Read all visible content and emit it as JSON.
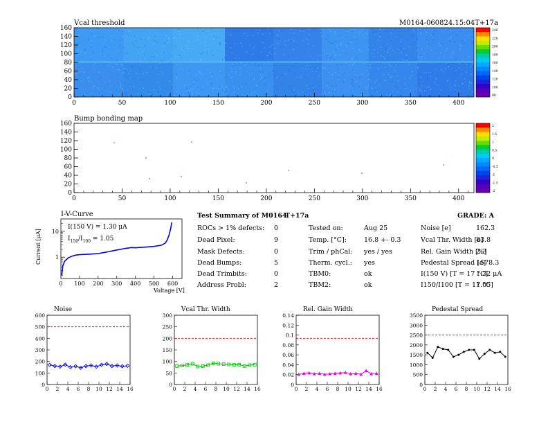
{
  "header": {
    "plot1_title": "Vcal threshold",
    "module_id": "M0164-060824.15:04T+17a",
    "plot2_title": "Bump bonding map"
  },
  "maps": {
    "x_ticks": [
      "0",
      "50",
      "100",
      "150",
      "200",
      "250",
      "300",
      "350",
      "400"
    ],
    "y_ticks": [
      "0",
      "20",
      "40",
      "60",
      "80",
      "100",
      "120",
      "140",
      "160"
    ],
    "vcal_palette_labels": [
      "240",
      "220",
      "200",
      "180",
      "160",
      "140",
      "120",
      "100",
      "80"
    ],
    "bump_palette_labels": [
      "2",
      "1.5",
      "1",
      "0.5",
      "0",
      "-0.5",
      "-1",
      "-1.5",
      "-2"
    ]
  },
  "iv": {
    "title": "I-V-Curve",
    "ylabel": "Current [μA]",
    "xlabel": "Voltage [V]",
    "annot1": "I(150 V) = 1.30 μA",
    "annot2_main": "I",
    "annot2_sub1": "150",
    "annot2_mid": "/I",
    "annot2_sub2": "100",
    "annot2_tail": " = 1.05",
    "x_ticks": [
      "0",
      "100",
      "200",
      "300",
      "400",
      "500",
      "600"
    ],
    "y_ticks": [
      "1",
      "10"
    ]
  },
  "summary": {
    "title": "Test Summary of M0164",
    "test": "T+17a",
    "grade_label": "GRADE:  A",
    "col1": [
      {
        "label": "ROCs > 1% defects:",
        "value": "0"
      },
      {
        "label": "Dead Pixel:",
        "value": "9"
      },
      {
        "label": "Mask Defects:",
        "value": "0"
      },
      {
        "label": "Dead Bumps:",
        "value": "5"
      },
      {
        "label": "Dead Trimbits:",
        "value": "0"
      },
      {
        "label": "Address Probl:",
        "value": "2"
      }
    ],
    "col2": [
      {
        "label": "Tested on:",
        "value": "Aug 25"
      },
      {
        "label": "Temp. [°C]:",
        "value": "16.8 +- 0.3"
      },
      {
        "label": "Trim / phCal:",
        "value": "yes / yes"
      },
      {
        "label": "Therm. cycl.:",
        "value": "yes"
      },
      {
        "label": "TBM0:",
        "value": "ok"
      },
      {
        "label": "TBM2:",
        "value": "ok"
      }
    ],
    "col3": [
      {
        "label": "Noise [e]",
        "value": "162.3"
      },
      {
        "label": "Vcal Thr. Width [e]",
        "value": "83.8"
      },
      {
        "label": "Rel. Gain Width [%]",
        "value": "2.3"
      },
      {
        "label": "Pedestal Spread [e]",
        "value": "1578.3"
      },
      {
        "label": "I(150 V) [T = 17 °C]",
        "value": "1.32 μA"
      },
      {
        "label": "I150/I100  [T = 17 °C]",
        "value": "1.05"
      }
    ]
  },
  "chart_data": [
    {
      "type": "line",
      "title": "I-V-Curve",
      "xlabel": "Voltage [V]",
      "ylabel": "Current [μA]",
      "log_y": true,
      "xlim": [
        0,
        650
      ],
      "ylim": [
        0.15,
        30
      ],
      "series": [
        {
          "color": "#0000ee",
          "x": [
            5,
            10,
            20,
            40,
            60,
            80,
            100,
            150,
            200,
            250,
            300,
            350,
            380,
            400,
            450,
            500,
            540,
            560,
            570,
            580,
            590,
            595
          ],
          "y": [
            0.2,
            0.45,
            0.7,
            0.95,
            1.1,
            1.2,
            1.25,
            1.3,
            1.38,
            1.6,
            1.9,
            2.2,
            2.35,
            2.3,
            2.45,
            2.6,
            2.9,
            3.5,
            4.5,
            7,
            13,
            22
          ]
        }
      ]
    },
    {
      "type": "line",
      "title": "Noise",
      "xlim": [
        0,
        16
      ],
      "ylim": [
        0,
        600
      ],
      "y_ticks": [
        "0",
        "100",
        "200",
        "300",
        "400",
        "500",
        "600"
      ],
      "x": [
        0,
        1,
        2,
        3,
        4,
        5,
        6,
        7,
        8,
        9,
        10,
        11,
        12,
        13,
        14,
        15
      ],
      "values": [
        170,
        160,
        155,
        172,
        150,
        158,
        145,
        160,
        165,
        155,
        170,
        178,
        160,
        165,
        158,
        162
      ],
      "limit": 500,
      "color": "#0000ee"
    },
    {
      "type": "line",
      "title": "Vcal Thr. Width",
      "xlim": [
        0,
        16
      ],
      "ylim": [
        0,
        300
      ],
      "y_ticks": [
        "0",
        "50",
        "100",
        "150",
        "200",
        "250",
        "300"
      ],
      "x": [
        0,
        1,
        2,
        3,
        4,
        5,
        6,
        7,
        8,
        9,
        10,
        11,
        12,
        13,
        14,
        15
      ],
      "values": [
        80,
        82,
        85,
        90,
        78,
        80,
        84,
        92,
        90,
        88,
        87,
        85,
        86,
        80,
        84,
        86
      ],
      "limit": 200,
      "color": "#00bb00"
    },
    {
      "type": "line",
      "title": "Rel. Gain Width",
      "xlim": [
        0,
        16
      ],
      "ylim": [
        0,
        0.15
      ],
      "y_ticks": [
        "0",
        "0.02",
        "0.04",
        "0.06",
        "0.08",
        "0.1",
        "0.12",
        "0.14"
      ],
      "x": [
        0,
        1,
        2,
        3,
        4,
        5,
        6,
        7,
        8,
        9,
        10,
        11,
        12,
        13,
        14,
        15
      ],
      "values": [
        0.022,
        0.024,
        0.025,
        0.023,
        0.024,
        0.022,
        0.023,
        0.024,
        0.025,
        0.026,
        0.023,
        0.024,
        0.022,
        0.03,
        0.023,
        0.024
      ],
      "limit": 0.1,
      "color": "#ee00ee"
    },
    {
      "type": "line",
      "title": "Pedestal Spread",
      "xlim": [
        0,
        16
      ],
      "ylim": [
        0,
        3500
      ],
      "y_ticks": [
        "0",
        "500",
        "1000",
        "1500",
        "2000",
        "2500",
        "3000",
        "3500"
      ],
      "x": [
        0,
        1,
        2,
        3,
        4,
        5,
        6,
        7,
        8,
        9,
        10,
        11,
        12,
        13,
        14,
        15
      ],
      "values": [
        1600,
        1350,
        1900,
        1800,
        1750,
        1400,
        1500,
        1650,
        1750,
        1750,
        1300,
        1550,
        1750,
        1600,
        1650,
        1400
      ],
      "limit": 2500,
      "color": "#000000"
    }
  ]
}
